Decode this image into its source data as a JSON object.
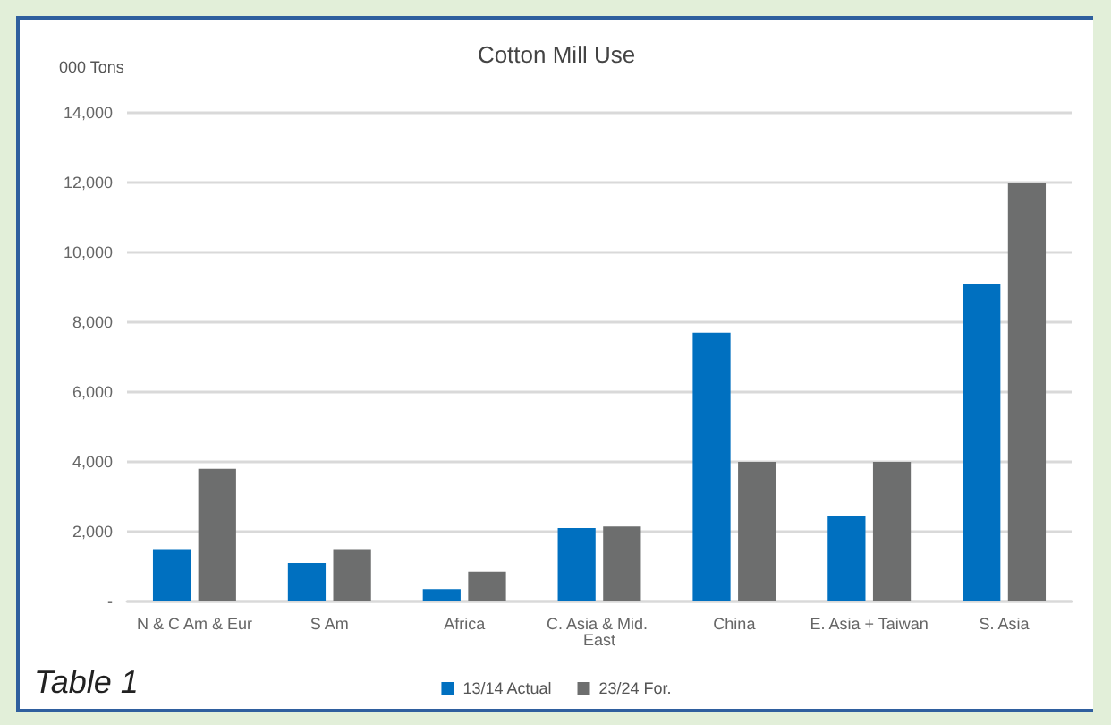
{
  "chart_data": {
    "type": "bar",
    "title": "Cotton Mill Use",
    "ylabel": "000 Tons",
    "annotations": [
      "Table 1"
    ],
    "categories": [
      "N & C Am & Eur",
      "S Am",
      "Africa",
      "C. Asia & Mid. East",
      "China",
      "E. Asia + Taiwan",
      "S. Asia"
    ],
    "series": [
      {
        "name": "13/14 Actual",
        "color": "#0070c0",
        "values": [
          1500,
          1100,
          350,
          2100,
          7700,
          2450,
          9100
        ]
      },
      {
        "name": "23/24 For.",
        "color": "#6d6e6e",
        "values": [
          3800,
          1500,
          850,
          2150,
          4000,
          4000,
          12000
        ]
      }
    ],
    "ylim": [
      0,
      14000
    ],
    "yticks": [
      {
        "value": 0,
        "label": "-"
      },
      {
        "value": 2000,
        "label": "2,000"
      },
      {
        "value": 4000,
        "label": "4,000"
      },
      {
        "value": 6000,
        "label": "6,000"
      },
      {
        "value": 8000,
        "label": "8,000"
      },
      {
        "value": 10000,
        "label": "10,000"
      },
      {
        "value": 12000,
        "label": "12,000"
      },
      {
        "value": 14000,
        "label": "14,000"
      }
    ],
    "grid": "y",
    "legend": "bottom"
  }
}
